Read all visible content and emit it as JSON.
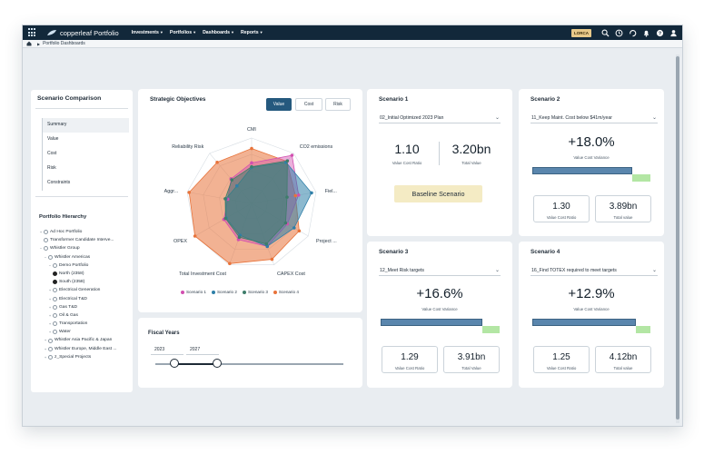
{
  "app": {
    "title": "copperleaf Portfolio",
    "menu": [
      {
        "label": "Investments"
      },
      {
        "label": "Portfolios"
      },
      {
        "label": "Dashboards"
      },
      {
        "label": "Reports"
      }
    ],
    "user_badge": "LORCA",
    "brand_color": "#12283a",
    "accent_color": "#25597e"
  },
  "breadcrumb": {
    "current": "Portfolio Dashboards"
  },
  "left_panel": {
    "title": "Scenario Comparison",
    "nav": [
      {
        "label": "Summary"
      },
      {
        "label": "Value"
      },
      {
        "label": "Cost"
      },
      {
        "label": "Risk"
      },
      {
        "label": "Constraints"
      }
    ],
    "active_nav": "Summary",
    "hierarchy_title": "Portfolio Hierarchy",
    "tree": [
      {
        "label": "Ad Hoc Portfolio"
      },
      {
        "label": "Transformer Candidate Interve..."
      },
      {
        "label": "Whistler Group"
      },
      {
        "label": "Whistler Americas"
      },
      {
        "label": "Demo Portfolio"
      },
      {
        "label": "North (2358)"
      },
      {
        "label": "South (2358)"
      },
      {
        "label": "Electrical Generation"
      },
      {
        "label": "Electrical T&D"
      },
      {
        "label": "Gas T&D"
      },
      {
        "label": "Oil & Gas"
      },
      {
        "label": "Transportation"
      },
      {
        "label": "Water"
      },
      {
        "label": "Whistler Asia Pacific & Japan"
      },
      {
        "label": "Whistler Europe, Middle East ..."
      },
      {
        "label": "z_Special Projects"
      }
    ]
  },
  "strategic": {
    "title": "Strategic Objectives",
    "toggles": [
      {
        "label": "Value"
      },
      {
        "label": "Cost"
      },
      {
        "label": "Risk"
      }
    ],
    "active_toggle": "Value"
  },
  "chart_data": {
    "type": "radar",
    "axes": [
      "CMI",
      "CO2 emissions",
      "Fiel...",
      "Project ...",
      "CAPEX Cost",
      "Total Investment Cost",
      "OPEX",
      "Aggr...",
      "Reliability Risk"
    ],
    "series": [
      {
        "name": "Scenario 1",
        "color": "#d24fb0",
        "values": [
          0.62,
          0.96,
          0.73,
          0.63,
          0.7,
          0.59,
          0.49,
          0.37,
          0.49
        ]
      },
      {
        "name": "Scenario 2",
        "color": "#2e7fa8",
        "values": [
          0.55,
          0.82,
          0.93,
          0.75,
          0.7,
          0.52,
          0.45,
          0.4,
          0.35
        ]
      },
      {
        "name": "Scenario 3",
        "color": "#3e7d6a",
        "values": [
          0.56,
          0.85,
          0.55,
          0.6,
          0.66,
          0.55,
          0.46,
          0.41,
          0.47
        ]
      },
      {
        "name": "Scenario 4",
        "color": "#e8733a",
        "values": [
          0.84,
          0.84,
          0.68,
          0.84,
          0.91,
          0.98,
          1.0,
          0.97,
          0.82
        ]
      }
    ],
    "grid": true,
    "legend": "bottom"
  },
  "fiscal": {
    "title": "Fiscal Years",
    "start": "2023",
    "end": "2027"
  },
  "scenarios": {
    "s1": {
      "title": "Scenario 1",
      "selection": "02_Initial Optimized 2023 Plan",
      "ratio": "1.10",
      "ratio_label": "Value Cost Ratio",
      "total": "3.20bn",
      "total_label": "Total Value",
      "baseline": "Baseline Scenario"
    },
    "s2": {
      "title": "Scenario 2",
      "selection": "11_Keep Maint. Cost below $41m/year",
      "variance": "+18.0%",
      "variance_label": "Value Cost Variance",
      "variance_fraction": 0.18,
      "ratio": "1.30",
      "ratio_label": "Value Cost Ratio",
      "total": "3.89bn",
      "total_label": "Total value"
    },
    "s3": {
      "title": "Scenario 3",
      "selection": "12_Meet Risk targets",
      "variance": "+16.6%",
      "variance_label": "Value Cost Variance",
      "variance_fraction": 0.166,
      "ratio": "1.29",
      "ratio_label": "Value Cost Ratio",
      "total": "3.91bn",
      "total_label": "Total Value"
    },
    "s4": {
      "title": "Scenario 4",
      "selection": "16_Find TOTEX required to meet targets",
      "variance": "+12.9%",
      "variance_label": "Value Cost Variance",
      "variance_fraction": 0.129,
      "ratio": "1.25",
      "ratio_label": "Value Cost Ratio",
      "total": "4.12bn",
      "total_label": "Total value"
    }
  }
}
